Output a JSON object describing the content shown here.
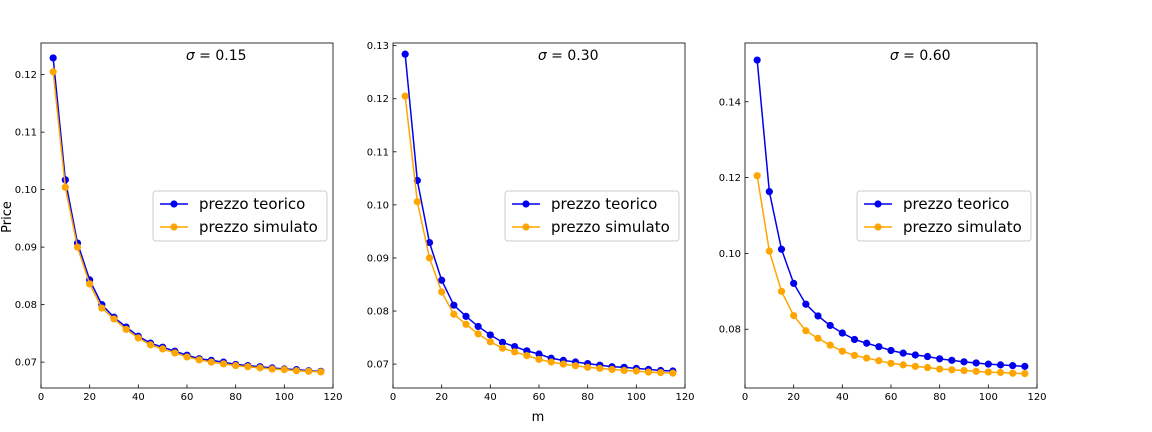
{
  "figure": {
    "ylabel": "Price",
    "xlabel": "m"
  },
  "chart_data": [
    {
      "type": "line",
      "title": "σ = 0.15",
      "title_math_symbol": "σ",
      "title_rest": " = 0.15",
      "xlim": [
        0,
        120
      ],
      "ylim": [
        0.0655,
        0.1255
      ],
      "xticks": [
        0,
        20,
        40,
        60,
        80,
        100,
        120
      ],
      "yticks": [
        0.07,
        0.08,
        0.09,
        0.1,
        0.11,
        0.12
      ],
      "ytick_labels": [
        "0.07",
        "0.08",
        "0.09",
        "0.10",
        "0.11",
        "0.12"
      ],
      "legend_position": "center-right",
      "x": [
        5,
        10,
        15,
        20,
        25,
        30,
        35,
        40,
        45,
        50,
        55,
        60,
        65,
        70,
        75,
        80,
        85,
        90,
        95,
        100,
        105,
        110,
        115
      ],
      "series": [
        {
          "name": "prezzo teorico",
          "color": "#0000ee",
          "values": [
            0.1229,
            0.1017,
            0.0907,
            0.0843,
            0.08,
            0.0778,
            0.0761,
            0.0745,
            0.0733,
            0.0726,
            0.0719,
            0.0712,
            0.0706,
            0.0703,
            0.07,
            0.0696,
            0.0694,
            0.0692,
            0.069,
            0.0688,
            0.0687,
            0.0685,
            0.0684
          ]
        },
        {
          "name": "prezzo simulato",
          "color": "#ffa500",
          "values": [
            0.1205,
            0.1004,
            0.09,
            0.0836,
            0.0794,
            0.0775,
            0.0757,
            0.0742,
            0.073,
            0.0723,
            0.0716,
            0.0709,
            0.0704,
            0.07,
            0.0697,
            0.0694,
            0.0692,
            0.069,
            0.0688,
            0.0687,
            0.0685,
            0.0684,
            0.0683
          ]
        }
      ]
    },
    {
      "type": "line",
      "title": "σ = 0.30",
      "title_math_symbol": "σ",
      "title_rest": " = 0.30",
      "xlim": [
        0,
        120
      ],
      "ylim": [
        0.0655,
        0.1305
      ],
      "xticks": [
        0,
        20,
        40,
        60,
        80,
        100,
        120
      ],
      "yticks": [
        0.07,
        0.08,
        0.09,
        0.1,
        0.11,
        0.12,
        0.13
      ],
      "ytick_labels": [
        "0.07",
        "0.08",
        "0.09",
        "0.10",
        "0.11",
        "0.12",
        "0.13"
      ],
      "legend_position": "center-right",
      "x": [
        5,
        10,
        15,
        20,
        25,
        30,
        35,
        40,
        45,
        50,
        55,
        60,
        65,
        70,
        75,
        80,
        85,
        90,
        95,
        100,
        105,
        110,
        115
      ],
      "series": [
        {
          "name": "prezzo teorico",
          "color": "#0000ee",
          "values": [
            0.1284,
            0.1046,
            0.0929,
            0.0858,
            0.0811,
            0.079,
            0.0771,
            0.0755,
            0.0741,
            0.0733,
            0.0725,
            0.0719,
            0.0711,
            0.0707,
            0.0704,
            0.0701,
            0.0698,
            0.0695,
            0.0694,
            0.0692,
            0.069,
            0.0688,
            0.0687
          ]
        },
        {
          "name": "prezzo simulato",
          "color": "#ffa500",
          "values": [
            0.1205,
            0.1006,
            0.09,
            0.0836,
            0.0794,
            0.0775,
            0.0757,
            0.0742,
            0.073,
            0.0723,
            0.0716,
            0.0709,
            0.0704,
            0.07,
            0.0697,
            0.0694,
            0.0692,
            0.069,
            0.0688,
            0.0687,
            0.0685,
            0.0684,
            0.0683
          ]
        }
      ]
    },
    {
      "type": "line",
      "title": "σ = 0.60",
      "title_math_symbol": "σ",
      "title_rest": " = 0.60",
      "xlim": [
        0,
        120
      ],
      "ylim": [
        0.0645,
        0.1555
      ],
      "xticks": [
        0,
        20,
        40,
        60,
        80,
        100,
        120
      ],
      "yticks": [
        0.08,
        0.1,
        0.12,
        0.14
      ],
      "ytick_labels": [
        "0.08",
        "0.10",
        "0.12",
        "0.14"
      ],
      "legend_position": "center-right",
      "x": [
        5,
        10,
        15,
        20,
        25,
        30,
        35,
        40,
        45,
        50,
        55,
        60,
        65,
        70,
        75,
        80,
        85,
        90,
        95,
        100,
        105,
        110,
        115
      ],
      "series": [
        {
          "name": "prezzo teorico",
          "color": "#0000ee",
          "values": [
            0.151,
            0.1163,
            0.1011,
            0.0921,
            0.0866,
            0.0835,
            0.081,
            0.079,
            0.0773,
            0.0763,
            0.0754,
            0.0744,
            0.0737,
            0.0732,
            0.0728,
            0.0722,
            0.0718,
            0.0714,
            0.0711,
            0.0708,
            0.0706,
            0.0704,
            0.0702
          ]
        },
        {
          "name": "prezzo simulato",
          "color": "#ffa500",
          "values": [
            0.1205,
            0.1006,
            0.09,
            0.0836,
            0.0796,
            0.0776,
            0.0758,
            0.0742,
            0.0731,
            0.0724,
            0.0717,
            0.071,
            0.0706,
            0.0702,
            0.0699,
            0.0695,
            0.0693,
            0.0691,
            0.0689,
            0.0687,
            0.0686,
            0.0684,
            0.0683
          ]
        }
      ]
    }
  ]
}
